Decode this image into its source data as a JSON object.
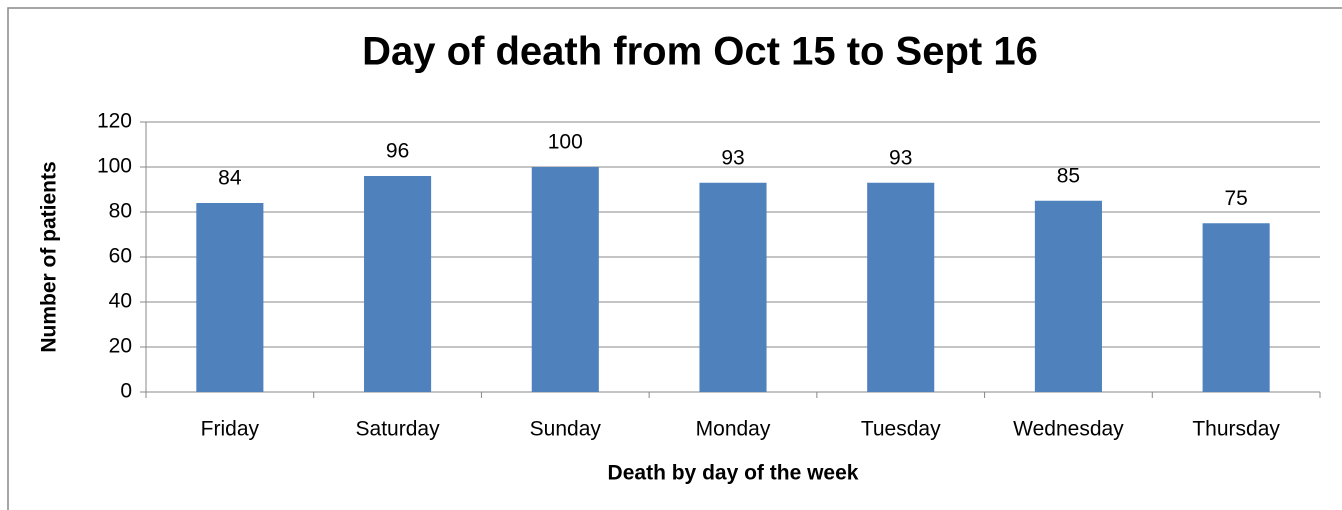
{
  "chart_data": {
    "type": "bar",
    "title": "Day of death from Oct 15 to Sept 16",
    "x_label": "Death by day of the week",
    "y_label": "Number of patients",
    "categories": [
      "Friday",
      "Saturday",
      "Sunday",
      "Monday",
      "Tuesday",
      "Wednesday",
      "Thursday"
    ],
    "values": [
      84,
      96,
      100,
      93,
      93,
      85,
      75
    ],
    "color": "#4f81bd",
    "ylim": [
      0,
      120
    ],
    "yticks": [
      0,
      20,
      40,
      60,
      80,
      100,
      120
    ],
    "grid": true
  }
}
